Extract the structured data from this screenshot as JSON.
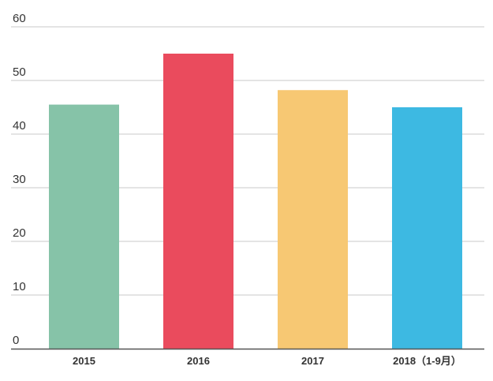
{
  "chart_data": {
    "type": "bar",
    "title": "",
    "xlabel": "",
    "ylabel": "",
    "categories": [
      "2015",
      "2016",
      "2017",
      "2018（1-9月）"
    ],
    "values": [
      45.5,
      55,
      48.2,
      45
    ],
    "colors": [
      "#86c3a8",
      "#ea4b5d",
      "#f7c873",
      "#3db9e2"
    ],
    "ylim": [
      0,
      60
    ],
    "yticks": [
      0,
      10,
      20,
      30,
      40,
      50,
      60
    ],
    "grid": true,
    "legend": "none"
  },
  "style": {
    "grid_color": "#c8c8c8",
    "axis_color": "#555555",
    "text_color": "#333333"
  }
}
